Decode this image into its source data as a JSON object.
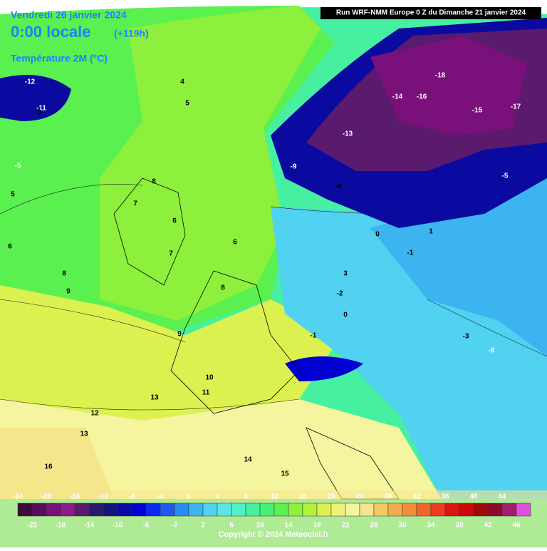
{
  "header": {
    "date": "Vendredi 26 janvier 2024",
    "time": "0:00 locale",
    "lead": "(+119h)",
    "variable": "Température 2M (°C)",
    "run": "Run WRF-NMM Europe 0 Z du Dimanche 21 janvier 2024"
  },
  "legend": {
    "labels": [
      -24,
      -22,
      -20,
      -18,
      -16,
      -14,
      -12,
      -10,
      -8,
      -6,
      -4,
      -2,
      0,
      2,
      4,
      6,
      8,
      10,
      12,
      14,
      16,
      18,
      20,
      22,
      24,
      26,
      28,
      30,
      32,
      34,
      36,
      38,
      40,
      42,
      44,
      46
    ],
    "colors": [
      "#3c0a3c",
      "#5a0a5a",
      "#7a107a",
      "#8c1a8c",
      "#5a1a6e",
      "#2a1a6e",
      "#14147a",
      "#0a0aa0",
      "#0000d2",
      "#0a28f0",
      "#1e5af0",
      "#288cf0",
      "#3cb4f0",
      "#50d2f0",
      "#5ae6e6",
      "#50f0c8",
      "#46f0a0",
      "#46f078",
      "#5af050",
      "#8cf03c",
      "#b4f03c",
      "#dcf050",
      "#f0f078",
      "#f5f5a0",
      "#f5e68c",
      "#f5c864",
      "#f5aa50",
      "#f58c3c",
      "#f56428",
      "#f03c1e",
      "#dc1414",
      "#c80a0a",
      "#a00a0a",
      "#8c0a28",
      "#a01e6e",
      "#e050e0"
    ]
  },
  "map_labels": [
    -12,
    -11,
    0,
    4,
    5,
    -5,
    5,
    6,
    8,
    7,
    6,
    7,
    6,
    8,
    9,
    8,
    3,
    -2,
    0,
    -1,
    9,
    10,
    11,
    12,
    13,
    13,
    16,
    15,
    14,
    -13,
    -14,
    -16,
    -18,
    -17,
    -15,
    -9,
    -4,
    -5,
    1,
    -1,
    0,
    -6,
    -3
  ],
  "copyright": "Copyright © 2024 Meteociel.fr"
}
